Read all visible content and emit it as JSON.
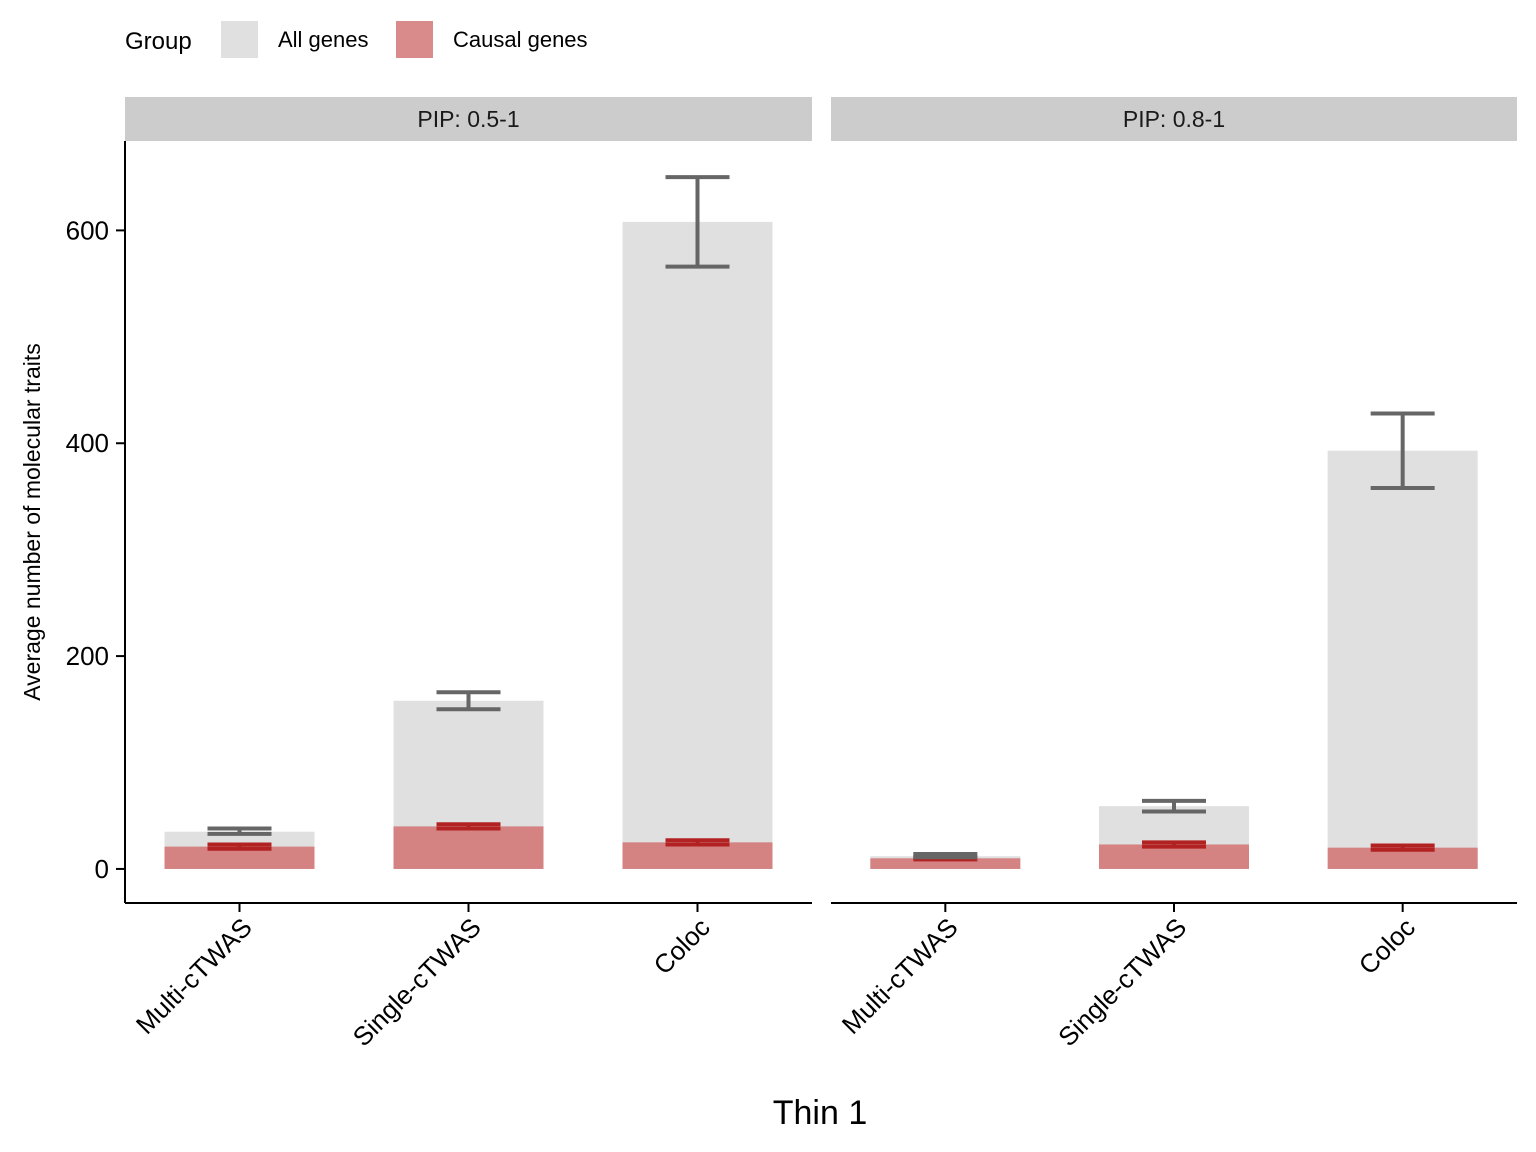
{
  "chart_data": {
    "type": "bar",
    "legend": {
      "title": "Group",
      "position": "top-left",
      "entries": [
        {
          "name": "All genes",
          "color": "#e0e0e0"
        },
        {
          "name": "Causal genes",
          "color": "#d98a8a"
        }
      ]
    },
    "colors": {
      "all_bar": "#e0e0e0",
      "causal_bar": "#d48282",
      "all_error": "#666666",
      "causal_error": "#b22222",
      "strip_bg": "#cccccc"
    },
    "xlabel": "Thin 1",
    "ylabel": "Average number of molecular traits",
    "ylim": [
      -32,
      684
    ],
    "yticks": [
      0,
      200,
      400,
      600
    ],
    "grid": false,
    "categories": [
      "Multi-cTWAS",
      "Single-cTWAS",
      "Coloc"
    ],
    "panels": [
      {
        "label": "PIP: 0.5-1",
        "series": [
          {
            "name": "All genes",
            "values": [
              35,
              158,
              608
            ],
            "error_low": [
              33,
              150,
              566
            ],
            "error_high": [
              38,
              166,
              650
            ]
          },
          {
            "name": "Causal genes",
            "values": [
              21,
              40,
              25
            ],
            "error_low": [
              19,
              38,
              23
            ],
            "error_high": [
              23,
              42,
              27
            ]
          }
        ]
      },
      {
        "label": "PIP: 0.8-1",
        "series": [
          {
            "name": "All genes",
            "values": [
              12,
              59,
              393
            ],
            "error_low": [
              11,
              54,
              358
            ],
            "error_high": [
              14,
              64,
              428
            ]
          },
          {
            "name": "Causal genes",
            "values": [
              10,
              23,
              20
            ],
            "error_low": [
              9,
              21,
              18
            ],
            "error_high": [
              11,
              25,
              22
            ]
          }
        ]
      }
    ]
  }
}
